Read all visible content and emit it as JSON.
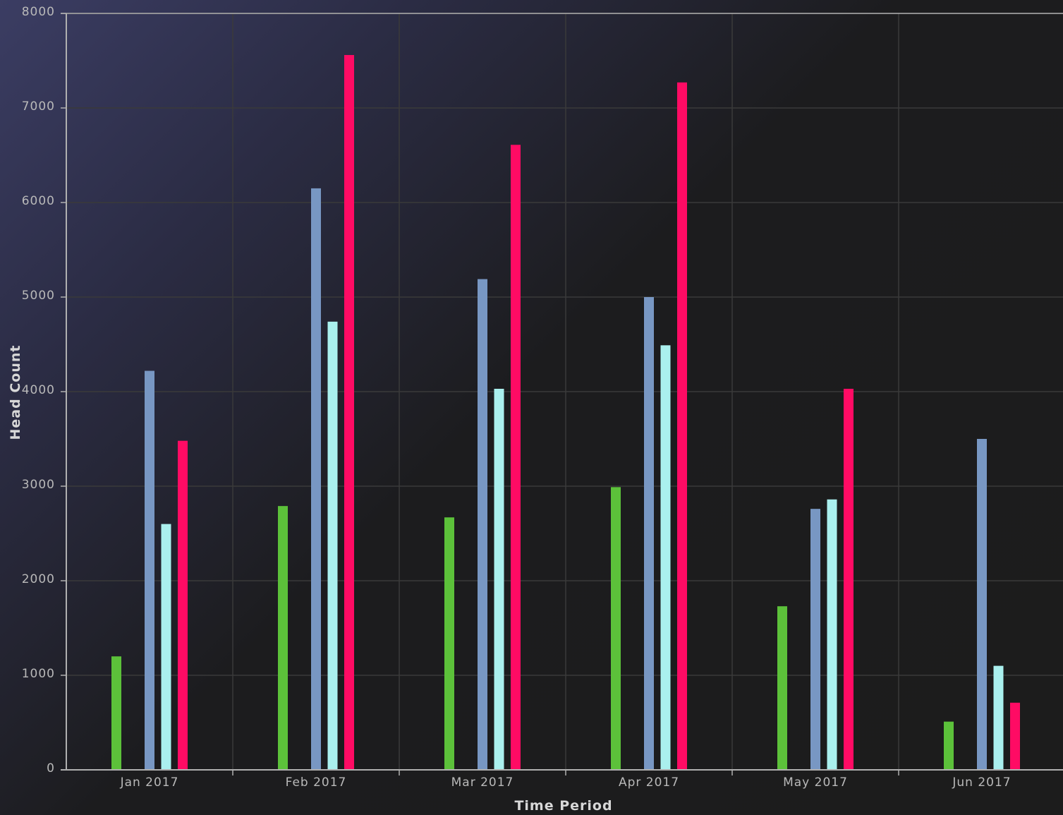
{
  "chart_data": {
    "type": "bar",
    "title": "",
    "xlabel": "Time Period",
    "ylabel": "Head Count",
    "ylim": [
      0,
      8000
    ],
    "yticks": [
      0,
      1000,
      2000,
      3000,
      4000,
      5000,
      6000,
      7000,
      8000
    ],
    "grid": true,
    "legend": "none",
    "categories": [
      "Jan 2017",
      "Feb 2017",
      "Mar 2017",
      "Apr 2017",
      "May 2017",
      "Jun 2017"
    ],
    "series": [
      {
        "color": "#5cc13a",
        "values": [
          1200,
          2790,
          2670,
          2990,
          1730,
          510
        ]
      },
      {
        "color": "#6a6a6a",
        "values": [
          0,
          0,
          0,
          0,
          0,
          0
        ]
      },
      {
        "color": "#7897c3",
        "values": [
          4220,
          6150,
          5190,
          5000,
          2760,
          3500
        ]
      },
      {
        "color": "#aaf0ee",
        "values": [
          2600,
          4740,
          4030,
          4490,
          2860,
          1100
        ]
      },
      {
        "color": "#ff0b64",
        "values": [
          3480,
          7560,
          6610,
          7270,
          4030,
          710
        ]
      }
    ]
  },
  "colors": {
    "grid": "#3a3a3a",
    "axis": "#b0b0b0"
  }
}
